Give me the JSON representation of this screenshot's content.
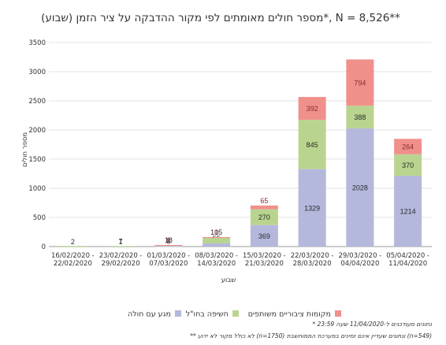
{
  "chart_data": {
    "type": "bar",
    "stacked": true,
    "title": "מספר חולים מאומתים לפי מקור ההדבקה על ציר הזמן (שבוע)*, N = 8,526**",
    "xlabel": "שבוע",
    "ylabel": "מספר חולים",
    "ylim": [
      0,
      3500
    ],
    "yticks": [
      "0",
      "500",
      "1000",
      "1500",
      "2000",
      "2500",
      "3000",
      "3500"
    ],
    "grid": true,
    "legend_position": "bottom",
    "categories": [
      {
        "line1": "16/02/2020 -",
        "line2": "22/02/2020"
      },
      {
        "line1": "23/02/2020 -",
        "line2": "29/02/2020"
      },
      {
        "line1": "01/03/2020 -",
        "line2": "07/03/2020"
      },
      {
        "line1": "08/03/2020 -",
        "line2": "14/03/2020"
      },
      {
        "line1": "15/03/2020 -",
        "line2": "21/03/2020"
      },
      {
        "line1": "22/03/2020 -",
        "line2": "28/03/2020"
      },
      {
        "line1": "29/03/2020 -",
        "line2": "04/04/2020"
      },
      {
        "line1": "05/04/2020 -",
        "line2": "11/04/2020"
      }
    ],
    "series": [
      {
        "name": "מגע עם חולה",
        "color": "#b4b8dc",
        "label_color": "#2b2b2b",
        "values": [
          0,
          1,
          8,
          55,
          369,
          1329,
          2028,
          1214
        ],
        "labels": [
          "",
          "1",
          "8",
          "55",
          "369",
          "1329",
          "2028",
          "1214"
        ]
      },
      {
        "name": "חשיפה בחו\"ל",
        "color": "#b9d48f",
        "label_color": "#2b2b2b",
        "values": [
          2,
          7,
          18,
          105,
          270,
          845,
          388,
          370
        ],
        "labels": [
          "2",
          "7",
          "18",
          "105",
          "270",
          "845",
          "388",
          "370"
        ]
      },
      {
        "name": "מקומות ציבוריים משותפים",
        "color": "#f0908b",
        "label_color": "#8a2b2b",
        "values": [
          0,
          0,
          1,
          1,
          65,
          392,
          794,
          264
        ],
        "labels": [
          "",
          "",
          "1",
          "1",
          "65",
          "392",
          "794",
          "264"
        ]
      }
    ],
    "footnotes": [
      "* נתונים מעודכנים ל-11/04/2020 שעה 23:59",
      "** לא כולל מקור לא ידוע (n=1750) ונתונים שעדיין אינם זמינים במערכת הממוחשבת (n=549)"
    ]
  }
}
